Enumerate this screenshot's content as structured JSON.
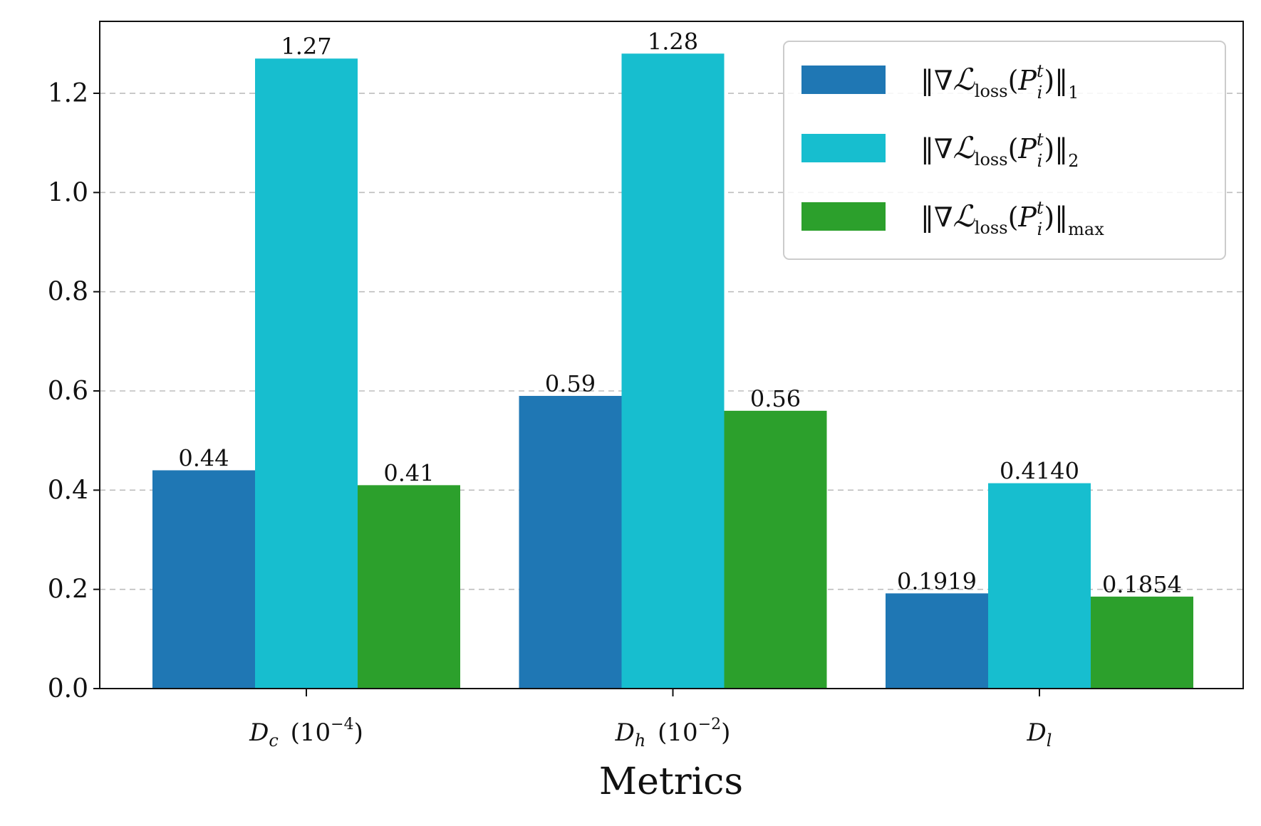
{
  "chart_data": {
    "type": "bar",
    "title": "",
    "xlabel": "Metrics",
    "ylabel": "",
    "ylim": [
      0,
      1.345
    ],
    "yticks": [
      0.0,
      0.2,
      0.4,
      0.6,
      0.8,
      1.0,
      1.2
    ],
    "ytick_labels": [
      "0.0",
      "0.2",
      "0.4",
      "0.6",
      "0.8",
      "1.0",
      "1.2"
    ],
    "grid": "y-dashed",
    "legend_position": "top-right",
    "categories": [
      {
        "symbol": "D",
        "sub": "c",
        "scale_base": "(10",
        "scale_exp": "−4",
        "scale_close": ")"
      },
      {
        "symbol": "D",
        "sub": "h",
        "scale_base": "(10",
        "scale_exp": "−2",
        "scale_close": ")"
      },
      {
        "symbol": "D",
        "sub": "l",
        "scale_base": "",
        "scale_exp": "",
        "scale_close": ""
      }
    ],
    "series": [
      {
        "name": "‖∇ℒloss(Pit)‖1",
        "legend": {
          "open": "‖∇",
          "script": "ℒ",
          "loss": "loss",
          "paren_open": "(",
          "p": "P",
          "sup": "t",
          "sub": "i",
          "paren_close": ")‖",
          "norm": "1"
        },
        "color": "#1f77b4",
        "values": [
          0.44,
          0.59,
          0.1919
        ],
        "labels": [
          "0.44",
          "0.59",
          "0.1919"
        ]
      },
      {
        "name": "‖∇ℒloss(Pit)‖2",
        "legend": {
          "open": "‖∇",
          "script": "ℒ",
          "loss": "loss",
          "paren_open": "(",
          "p": "P",
          "sup": "t",
          "sub": "i",
          "paren_close": ")‖",
          "norm": "2"
        },
        "color": "#17becf",
        "values": [
          1.27,
          1.28,
          0.414
        ],
        "labels": [
          "1.27",
          "1.28",
          "0.4140"
        ]
      },
      {
        "name": "‖∇ℒloss(Pit)‖max",
        "legend": {
          "open": "‖∇",
          "script": "ℒ",
          "loss": "loss",
          "paren_open": "(",
          "p": "P",
          "sup": "t",
          "sub": "i",
          "paren_close": ")‖",
          "norm": "max"
        },
        "color": "#2ca02c",
        "values": [
          0.41,
          0.56,
          0.1854
        ],
        "labels": [
          "0.41",
          "0.56",
          "0.1854"
        ]
      }
    ]
  }
}
